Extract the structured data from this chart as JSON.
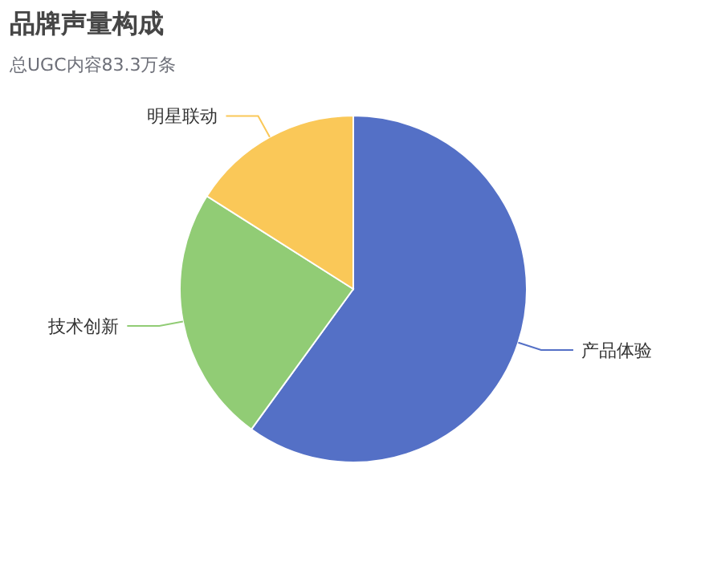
{
  "chart_data": {
    "type": "pie",
    "title": "品牌声量构成",
    "subtitle": "总UGC内容83.3万条",
    "categories": [
      "产品体验",
      "技术创新",
      "明星联动"
    ],
    "values": [
      60,
      24,
      16
    ],
    "colors": [
      "#5470c6",
      "#91cc75",
      "#fac858"
    ],
    "legend": false
  }
}
